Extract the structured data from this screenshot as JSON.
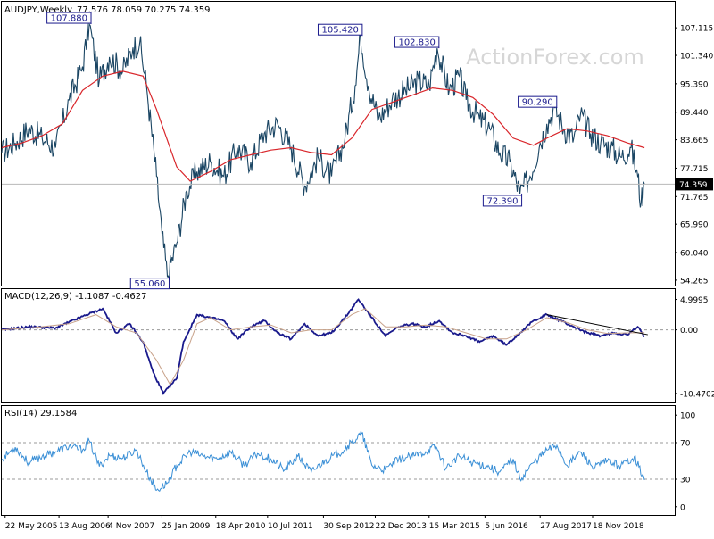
{
  "chart_data": {
    "type": "line",
    "symbol_label": "AUDJPY,Weekly",
    "ohlc_label": "77.576 78.059 70.275 74.359",
    "watermark": "ActionForex.com",
    "last_price_label": "74.359",
    "last_price": 74.359,
    "price_panel": {
      "y_ticks": [
        "107.115",
        "101.340",
        "95.390",
        "89.440",
        "83.665",
        "77.715",
        "71.765",
        "65.990",
        "60.040",
        "54.265"
      ],
      "ylim": [
        53.5,
        112.0
      ],
      "annotations": [
        {
          "label": "107.880",
          "x": 0.13,
          "y": 107.88
        },
        {
          "label": "55.060",
          "x": 0.246,
          "y": 55.06
        },
        {
          "label": "105.420",
          "x": 0.533,
          "y": 105.42
        },
        {
          "label": "102.830",
          "x": 0.647,
          "y": 102.83
        },
        {
          "label": "72.390",
          "x": 0.77,
          "y": 72.39
        },
        {
          "label": "90.290",
          "x": 0.822,
          "y": 90.29
        }
      ],
      "series": [
        {
          "id": "price",
          "color": "#1a4563",
          "points": [
            [
              0,
              81
            ],
            [
              0.02,
              83
            ],
            [
              0.04,
              86
            ],
            [
              0.06,
              84
            ],
            [
              0.08,
              82
            ],
            [
              0.1,
              92
            ],
            [
              0.12,
              99
            ],
            [
              0.13,
              107.88
            ],
            [
              0.145,
              96
            ],
            [
              0.16,
              101
            ],
            [
              0.18,
              98
            ],
            [
              0.195,
              103
            ],
            [
              0.205,
              104
            ],
            [
              0.215,
              95
            ],
            [
              0.23,
              76
            ],
            [
              0.238,
              64
            ],
            [
              0.246,
              55.06
            ],
            [
              0.26,
              62
            ],
            [
              0.275,
              73
            ],
            [
              0.29,
              77
            ],
            [
              0.31,
              79
            ],
            [
              0.33,
              76
            ],
            [
              0.35,
              82
            ],
            [
              0.37,
              79
            ],
            [
              0.39,
              85
            ],
            [
              0.41,
              87
            ],
            [
              0.43,
              82
            ],
            [
              0.45,
              74
            ],
            [
              0.47,
              80
            ],
            [
              0.49,
              76
            ],
            [
              0.51,
              84
            ],
            [
              0.525,
              95
            ],
            [
              0.533,
              105.42
            ],
            [
              0.545,
              95
            ],
            [
              0.56,
              88
            ],
            [
              0.58,
              92
            ],
            [
              0.6,
              94
            ],
            [
              0.62,
              96
            ],
            [
              0.635,
              95
            ],
            [
              0.647,
              102.83
            ],
            [
              0.665,
              94
            ],
            [
              0.68,
              97
            ],
            [
              0.69,
              92
            ],
            [
              0.71,
              88
            ],
            [
              0.725,
              86
            ],
            [
              0.74,
              81
            ],
            [
              0.755,
              79
            ],
            [
              0.77,
              72.39
            ],
            [
              0.785,
              76
            ],
            [
              0.8,
              83
            ],
            [
              0.81,
              87
            ],
            [
              0.822,
              90.29
            ],
            [
              0.835,
              86
            ],
            [
              0.85,
              84
            ],
            [
              0.86,
              89
            ],
            [
              0.875,
              85
            ],
            [
              0.89,
              83
            ],
            [
              0.905,
              82
            ],
            [
              0.92,
              80
            ],
            [
              0.935,
              82
            ],
            [
              0.945,
              76
            ],
            [
              0.95,
              70.3
            ],
            [
              0.955,
              74.359
            ]
          ]
        },
        {
          "id": "moving-average",
          "color": "#d9262b",
          "points": [
            [
              0,
              82
            ],
            [
              0.03,
              83
            ],
            [
              0.06,
              84.5
            ],
            [
              0.09,
              87
            ],
            [
              0.12,
              94
            ],
            [
              0.15,
              97
            ],
            [
              0.18,
              98
            ],
            [
              0.21,
              97
            ],
            [
              0.23,
              90
            ],
            [
              0.26,
              78
            ],
            [
              0.28,
              75
            ],
            [
              0.31,
              77
            ],
            [
              0.34,
              79.5
            ],
            [
              0.37,
              80.5
            ],
            [
              0.4,
              81.5
            ],
            [
              0.43,
              82
            ],
            [
              0.46,
              81
            ],
            [
              0.49,
              80.5
            ],
            [
              0.52,
              84
            ],
            [
              0.55,
              90
            ],
            [
              0.58,
              91.5
            ],
            [
              0.61,
              93
            ],
            [
              0.64,
              94.5
            ],
            [
              0.67,
              94
            ],
            [
              0.7,
              92.5
            ],
            [
              0.73,
              89
            ],
            [
              0.76,
              84
            ],
            [
              0.79,
              82.5
            ],
            [
              0.81,
              84
            ],
            [
              0.84,
              86
            ],
            [
              0.87,
              85.5
            ],
            [
              0.9,
              84.5
            ],
            [
              0.93,
              83
            ],
            [
              0.955,
              82
            ]
          ]
        }
      ]
    },
    "macd_panel": {
      "label": "MACD(12,26,9) -1.1087 -0.4627",
      "y_ticks": [
        "4.9995",
        "0.00",
        "-10.4702"
      ],
      "ylim": [
        -11.8,
        6.4
      ],
      "series": [
        {
          "id": "macd",
          "color": "#1a1a8c",
          "points": [
            [
              0,
              0
            ],
            [
              0.04,
              0.5
            ],
            [
              0.08,
              0.3
            ],
            [
              0.12,
              2.2
            ],
            [
              0.15,
              3.5
            ],
            [
              0.17,
              -0.5
            ],
            [
              0.19,
              1.0
            ],
            [
              0.21,
              -2.0
            ],
            [
              0.225,
              -7
            ],
            [
              0.24,
              -10.47
            ],
            [
              0.26,
              -8
            ],
            [
              0.27,
              -2
            ],
            [
              0.29,
              2.5
            ],
            [
              0.31,
              2.0
            ],
            [
              0.33,
              1.5
            ],
            [
              0.35,
              -1.5
            ],
            [
              0.37,
              0.5
            ],
            [
              0.39,
              1.5
            ],
            [
              0.41,
              -0.5
            ],
            [
              0.43,
              -1.5
            ],
            [
              0.45,
              1.0
            ],
            [
              0.47,
              -1.0
            ],
            [
              0.49,
              -0.5
            ],
            [
              0.51,
              2.0
            ],
            [
              0.53,
              4.9995
            ],
            [
              0.55,
              2.0
            ],
            [
              0.57,
              -1.0
            ],
            [
              0.59,
              0.5
            ],
            [
              0.61,
              1.0
            ],
            [
              0.63,
              0.5
            ],
            [
              0.65,
              1.5
            ],
            [
              0.67,
              -0.5
            ],
            [
              0.69,
              -1.0
            ],
            [
              0.71,
              -2.0
            ],
            [
              0.73,
              -1.0
            ],
            [
              0.75,
              -2.5
            ],
            [
              0.77,
              -0.5
            ],
            [
              0.79,
              1.5
            ],
            [
              0.81,
              2.5
            ],
            [
              0.83,
              1.5
            ],
            [
              0.85,
              0.5
            ],
            [
              0.87,
              -0.5
            ],
            [
              0.89,
              -1.0
            ],
            [
              0.91,
              -0.5
            ],
            [
              0.93,
              -0.8
            ],
            [
              0.945,
              0.5
            ],
            [
              0.955,
              -1.1087
            ]
          ]
        },
        {
          "id": "signal",
          "color": "#c8a28a",
          "points": [
            [
              0,
              0
            ],
            [
              0.05,
              0.4
            ],
            [
              0.1,
              1.0
            ],
            [
              0.14,
              2.5
            ],
            [
              0.17,
              0.5
            ],
            [
              0.2,
              -0.5
            ],
            [
              0.23,
              -5
            ],
            [
              0.25,
              -9
            ],
            [
              0.27,
              -5
            ],
            [
              0.29,
              1.0
            ],
            [
              0.31,
              2.0
            ],
            [
              0.34,
              0
            ],
            [
              0.37,
              0.5
            ],
            [
              0.4,
              0.8
            ],
            [
              0.43,
              -0.5
            ],
            [
              0.46,
              0
            ],
            [
              0.49,
              0
            ],
            [
              0.52,
              2.5
            ],
            [
              0.54,
              3.5
            ],
            [
              0.57,
              0.5
            ],
            [
              0.6,
              0.5
            ],
            [
              0.63,
              0.8
            ],
            [
              0.66,
              0.5
            ],
            [
              0.69,
              -0.5
            ],
            [
              0.72,
              -1.5
            ],
            [
              0.75,
              -1.5
            ],
            [
              0.78,
              0
            ],
            [
              0.81,
              2.0
            ],
            [
              0.84,
              1.2
            ],
            [
              0.87,
              0
            ],
            [
              0.9,
              -0.6
            ],
            [
              0.93,
              -0.5
            ],
            [
              0.955,
              -0.4627
            ]
          ]
        }
      ],
      "trendline": {
        "color": "#000000",
        "points": [
          [
            0.81,
            2.5
          ],
          [
            0.96,
            -0.8
          ]
        ]
      }
    },
    "rsi_panel": {
      "label": "RSI(14) 29.1584",
      "y_ticks": [
        "100",
        "70",
        "30",
        "0"
      ],
      "levels": [
        70,
        30
      ],
      "ylim": [
        -8,
        108
      ],
      "series": [
        {
          "id": "rsi",
          "color": "#3a8fd6",
          "points": [
            [
              0,
              52
            ],
            [
              0.02,
              65
            ],
            [
              0.04,
              48
            ],
            [
              0.06,
              55
            ],
            [
              0.08,
              60
            ],
            [
              0.1,
              66
            ],
            [
              0.12,
              62
            ],
            [
              0.13,
              72
            ],
            [
              0.145,
              44
            ],
            [
              0.16,
              56
            ],
            [
              0.18,
              53
            ],
            [
              0.2,
              62
            ],
            [
              0.215,
              38
            ],
            [
              0.23,
              18
            ],
            [
              0.245,
              25
            ],
            [
              0.26,
              45
            ],
            [
              0.28,
              60
            ],
            [
              0.3,
              55
            ],
            [
              0.32,
              52
            ],
            [
              0.34,
              60
            ],
            [
              0.36,
              45
            ],
            [
              0.38,
              58
            ],
            [
              0.4,
              52
            ],
            [
              0.42,
              40
            ],
            [
              0.44,
              55
            ],
            [
              0.46,
              38
            ],
            [
              0.48,
              50
            ],
            [
              0.5,
              58
            ],
            [
              0.52,
              70
            ],
            [
              0.535,
              80
            ],
            [
              0.55,
              45
            ],
            [
              0.57,
              40
            ],
            [
              0.59,
              52
            ],
            [
              0.61,
              55
            ],
            [
              0.63,
              60
            ],
            [
              0.645,
              66
            ],
            [
              0.66,
              42
            ],
            [
              0.68,
              55
            ],
            [
              0.7,
              48
            ],
            [
              0.72,
              45
            ],
            [
              0.74,
              38
            ],
            [
              0.76,
              52
            ],
            [
              0.77,
              30
            ],
            [
              0.79,
              48
            ],
            [
              0.81,
              62
            ],
            [
              0.825,
              67
            ],
            [
              0.84,
              45
            ],
            [
              0.86,
              60
            ],
            [
              0.88,
              42
            ],
            [
              0.9,
              50
            ],
            [
              0.92,
              45
            ],
            [
              0.94,
              55
            ],
            [
              0.955,
              29.1584
            ]
          ]
        }
      ]
    },
    "x_ticks": [
      {
        "label": "22 May 2005",
        "x": 0.005
      },
      {
        "label": "13 Aug 2006",
        "x": 0.085
      },
      {
        "label": "4 Nov 2007",
        "x": 0.158
      },
      {
        "label": "25 Jan 2009",
        "x": 0.238
      },
      {
        "label": "18 Apr 2010",
        "x": 0.318
      },
      {
        "label": "10 Jul 2011",
        "x": 0.395
      },
      {
        "label": "30 Sep 2012",
        "x": 0.478
      },
      {
        "label": "22 Dec 2013",
        "x": 0.555
      },
      {
        "label": "15 Mar 2015",
        "x": 0.635
      },
      {
        "label": "5 Jun 2016",
        "x": 0.718
      },
      {
        "label": "27 Aug 2017",
        "x": 0.8
      },
      {
        "label": "18 Nov 2018",
        "x": 0.878
      }
    ]
  }
}
